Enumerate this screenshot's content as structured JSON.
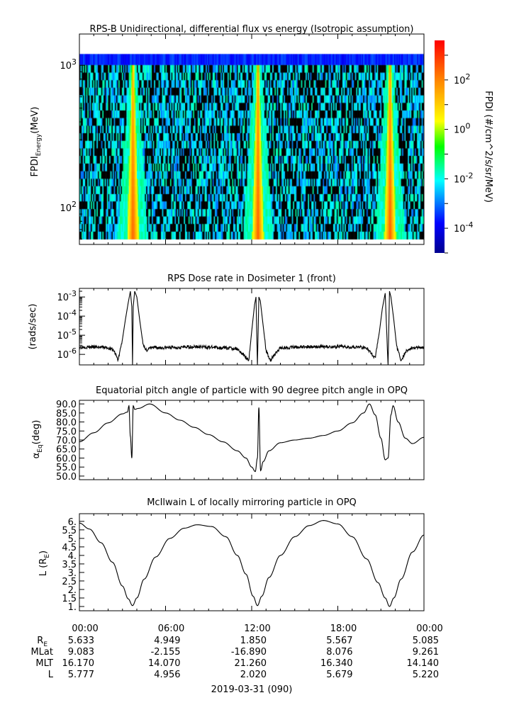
{
  "chart_data": [
    {
      "type": "heatmap",
      "title": "RPS-B  Unidirectional, differential flux vs energy (Isotropic assumption)",
      "ylabel": "FPDI",
      "ylabel_sub": "Energy",
      "ylabel_unit": "(MeV)",
      "yscale": "log",
      "ylim": [
        55,
        1480
      ],
      "yticks": [
        {
          "base": "10",
          "exp": "2",
          "value": 100
        },
        {
          "base": "10",
          "exp": "3",
          "value": 1000
        }
      ],
      "xlim_hours": [
        0,
        24
      ],
      "energy_channels_mev": [
        60,
        68,
        77,
        87,
        98,
        111,
        125,
        142,
        160,
        181,
        205,
        232,
        262,
        296,
        335,
        378,
        428,
        484,
        547,
        618,
        700,
        790,
        893,
        1010,
        1200
      ],
      "flux_peak_times_hours": [
        3.7,
        12.4,
        21.6
      ],
      "peak_flux": 300,
      "background_flux": 0.005,
      "colorbar": {
        "label": "FPDI (#/cm^2/s/sr/MeV)",
        "scale": "log",
        "range_exp": [
          -5,
          3.6
        ],
        "ticks": [
          {
            "base": "10",
            "exp": "2",
            "value": 2
          },
          {
            "base": "10",
            "exp": "0",
            "value": 0
          },
          {
            "base": "10",
            "exp": "-2",
            "value": -2
          },
          {
            "base": "10",
            "exp": "-4",
            "value": -4
          }
        ]
      }
    },
    {
      "type": "line",
      "title": "RPS  Dose rate in Dosimeter 1 (front)",
      "ylabel": "(rads/sec)",
      "yscale": "log",
      "ylim_exp": [
        -6.55,
        -2.55
      ],
      "yticks": [
        {
          "base": "10",
          "exp": "-3",
          "value": -3
        },
        {
          "base": "10",
          "exp": "-4",
          "value": -4
        },
        {
          "base": "10",
          "exp": "-5",
          "value": -5
        },
        {
          "base": "10",
          "exp": "-6",
          "value": -6
        }
      ],
      "x_hours": [
        0,
        1,
        2,
        2.4,
        2.7,
        3.0,
        3.2,
        3.4,
        3.55,
        3.65,
        3.7,
        3.75,
        3.85,
        4.0,
        4.2,
        4.4,
        4.6,
        5,
        6,
        8,
        10,
        11,
        11.8,
        12.0,
        12.2,
        12.3,
        12.4,
        12.5,
        12.6,
        12.8,
        13.0,
        13.3,
        14,
        16,
        18,
        19,
        20,
        20.6,
        20.9,
        21.1,
        21.3,
        21.5,
        21.6,
        21.7,
        21.9,
        22.1,
        22.4,
        22.8,
        23,
        24
      ],
      "y_log10": [
        -5.6,
        -5.62,
        -5.65,
        -5.8,
        -6.3,
        -5.2,
        -4.2,
        -3.3,
        -2.7,
        -3.5,
        -6.6,
        -3.5,
        -2.7,
        -3.0,
        -4.2,
        -5.3,
        -5.8,
        -5.65,
        -5.65,
        -5.6,
        -5.65,
        -5.7,
        -6.3,
        -4.8,
        -3.4,
        -3.0,
        -6.6,
        -3.0,
        -3.2,
        -4.5,
        -5.8,
        -6.3,
        -5.65,
        -5.6,
        -5.6,
        -5.6,
        -5.65,
        -6.2,
        -4.8,
        -3.6,
        -2.8,
        -6.6,
        -2.7,
        -3.0,
        -4.2,
        -5.6,
        -6.3,
        -5.8,
        -5.7,
        -5.6
      ]
    },
    {
      "type": "line",
      "title": "Equatorial pitch angle of particle with 90 degree pitch angle in OPQ",
      "ylabel": "α",
      "ylabel_sub": "Eq",
      "ylabel_unit": "(deg)",
      "ylim": [
        48,
        92
      ],
      "yticks": [
        50,
        55,
        60,
        65,
        70,
        75,
        80,
        85,
        90
      ],
      "x_hours": [
        0,
        1,
        2,
        3,
        3.35,
        3.45,
        3.55,
        3.65,
        3.75,
        3.85,
        4.1,
        4.9,
        6,
        7,
        8,
        9,
        10,
        11,
        11.6,
        12.0,
        12.25,
        12.4,
        12.5,
        12.62,
        12.8,
        13.2,
        14,
        15,
        16,
        17,
        18,
        19,
        19.8,
        20.2,
        20.6,
        21.0,
        21.3,
        21.5,
        21.7,
        21.85,
        22.2,
        22.7,
        23.2,
        24
      ],
      "values": [
        69,
        74,
        79.5,
        84.5,
        85.5,
        89,
        72,
        60,
        89,
        87,
        87.5,
        90,
        85,
        81,
        77,
        73,
        69,
        64,
        60,
        55,
        52.5,
        60,
        88,
        53,
        58,
        64,
        68.5,
        70,
        71,
        72.5,
        75,
        79.5,
        85,
        90,
        84,
        71,
        59,
        60,
        84,
        89,
        80,
        71,
        68,
        71.5
      ]
    },
    {
      "type": "line",
      "title": "McIlwain L of locally mirroring particle in OPQ",
      "ylabel": "L (R",
      "ylabel_sub": "E",
      "ylabel_unit": ")",
      "ylim": [
        0.75,
        6.45
      ],
      "yticks": [
        1,
        1.5,
        2,
        2.5,
        3,
        3.5,
        4,
        4.5,
        5,
        5.5,
        6
      ],
      "ytick_labels": [
        "1.",
        "1.5",
        "2.",
        "2.5",
        "3.",
        "3.5",
        "4.",
        "4.5",
        "5.",
        "5.5",
        "6."
      ],
      "x_hours": [
        0,
        0.7,
        1.5,
        2.3,
        3.0,
        3.4,
        3.7,
        4.0,
        4.5,
        5.3,
        6.3,
        7.3,
        8.2,
        9.2,
        10.2,
        11.0,
        11.6,
        12.1,
        12.4,
        12.7,
        13.2,
        14.0,
        15.0,
        16.0,
        17.0,
        18.0,
        19.0,
        20.0,
        20.8,
        21.3,
        21.6,
        21.9,
        22.4,
        23.2,
        24
      ],
      "values": [
        5.9,
        5.55,
        4.75,
        3.6,
        2.2,
        1.45,
        1.05,
        1.5,
        2.6,
        3.9,
        5.0,
        5.6,
        5.8,
        5.7,
        5.1,
        4.0,
        2.9,
        1.6,
        1.05,
        1.6,
        2.7,
        4.0,
        5.1,
        5.75,
        6.05,
        5.85,
        5.1,
        3.8,
        2.4,
        1.5,
        1.0,
        1.5,
        2.6,
        4.2,
        5.2
      ]
    }
  ],
  "x_axis": {
    "tick_labels": [
      "00:00",
      "06:00",
      "12:00",
      "18:00",
      "00:00"
    ],
    "rows": [
      {
        "label": "R",
        "label_sub": "E",
        "values": [
          "5.633",
          "4.949",
          "1.850",
          "5.567",
          "5.085"
        ]
      },
      {
        "label": "MLat",
        "label_sub": "",
        "values": [
          "9.083",
          "-2.155",
          "-16.890",
          "8.076",
          "9.261"
        ]
      },
      {
        "label": "MLT",
        "label_sub": "",
        "values": [
          "16.170",
          "14.070",
          "21.260",
          "16.340",
          "14.140"
        ]
      },
      {
        "label": "L",
        "label_sub": "",
        "values": [
          "5.777",
          "4.956",
          "2.020",
          "5.679",
          "5.220"
        ]
      }
    ],
    "date": "2019-03-31 (090)"
  }
}
